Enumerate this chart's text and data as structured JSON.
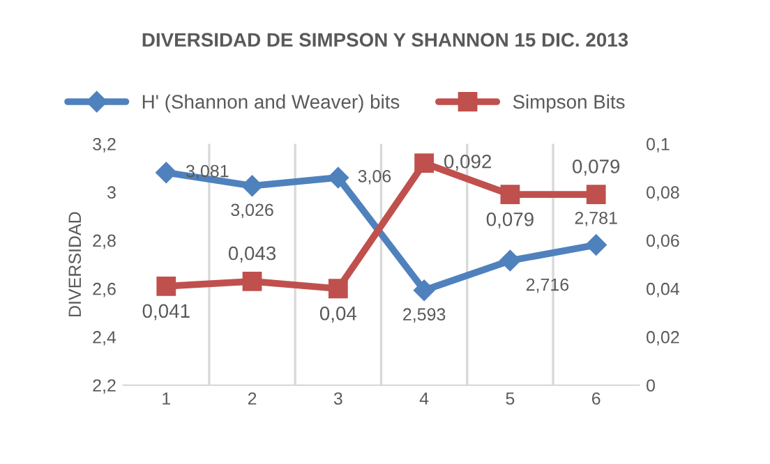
{
  "chart_data": {
    "type": "line",
    "title": "DIVERSIDAD DE SIMPSON Y SHANNON 15 DIC. 2013",
    "ylabel": "DIVERSIDAD",
    "categories": [
      "1",
      "2",
      "3",
      "4",
      "5",
      "6"
    ],
    "series": [
      {
        "name": "H' (Shannon and Weaver) bits",
        "color": "#4f81bd",
        "marker": "diamond",
        "values": [
          3.081,
          3.026,
          3.06,
          2.593,
          2.716,
          2.781
        ],
        "value_labels": [
          "3,081",
          "3,026",
          "3,06",
          "2,593",
          "2,716",
          "2,781"
        ]
      },
      {
        "name": "Simpson Bits",
        "color": "#c0504d",
        "marker": "square",
        "axis": "y2",
        "values": [
          0.041,
          0.043,
          0.04,
          0.092,
          0.079,
          0.079
        ],
        "value_labels": [
          "0,041",
          "0,043",
          "0,04",
          "0,092",
          "0,079",
          "0,079"
        ]
      }
    ],
    "ylim": [
      2.2,
      3.2
    ],
    "yticks": [
      {
        "value": 2.2,
        "label": "2,2"
      },
      {
        "value": 2.4,
        "label": "2,4"
      },
      {
        "value": 2.6,
        "label": "2,6"
      },
      {
        "value": 2.8,
        "label": "2,8"
      },
      {
        "value": 3,
        "label": "3"
      },
      {
        "value": 3.2,
        "label": "3,2"
      }
    ],
    "y2lim": [
      0,
      0.1
    ],
    "y2ticks": [
      0,
      {
        "value": 0.02,
        "label": "0,02"
      },
      {
        "value": 0.04,
        "label": "0,04"
      },
      {
        "value": 0.06,
        "label": "0,06"
      },
      {
        "value": 0.08,
        "label": "0,08"
      },
      {
        "value": 0.1,
        "label": "0,1"
      }
    ],
    "grid": "x",
    "legend": "top"
  }
}
